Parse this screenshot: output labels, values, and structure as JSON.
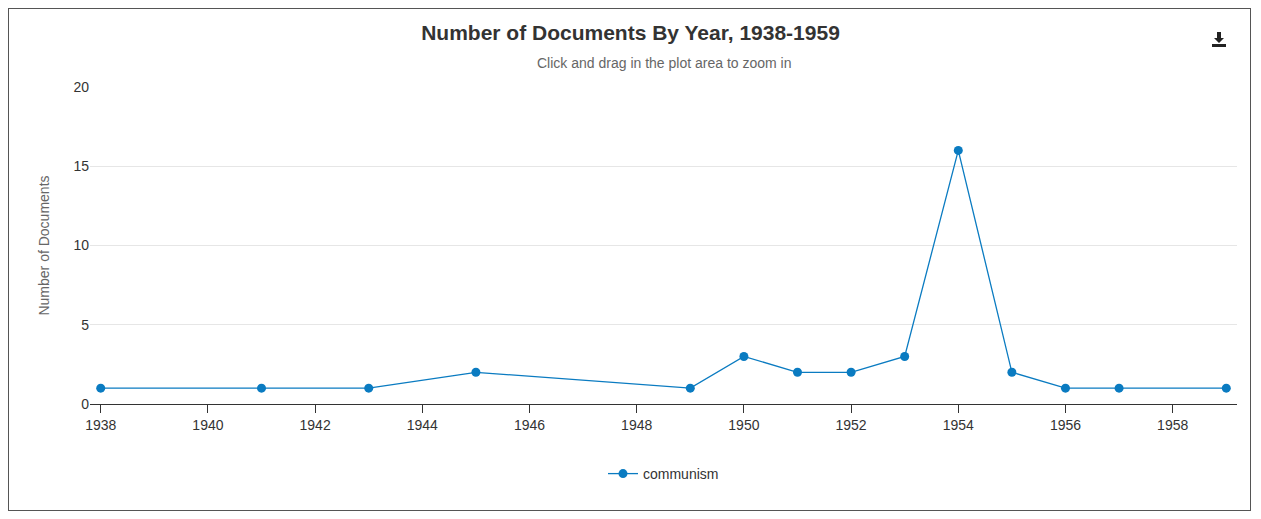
{
  "chart_data": {
    "type": "line",
    "title": "Number of Documents By Year, 1938-1959",
    "subtitle": "Click and drag in the plot area to zoom in",
    "y_label": "Number of Documents",
    "x": [
      1938,
      1941,
      1943,
      1945,
      1949,
      1950,
      1951,
      1952,
      1953,
      1954,
      1955,
      1956,
      1957,
      1959
    ],
    "series": [
      {
        "name": "communism",
        "color": "#0a7bc1",
        "marker": "circle",
        "values": [
          1,
          1,
          1,
          2,
          1,
          3,
          2,
          2,
          3,
          16,
          2,
          1,
          1,
          1
        ]
      }
    ],
    "xlim": [
      1937.8,
      1959.2
    ],
    "xticks": [
      1938,
      1940,
      1942,
      1944,
      1946,
      1948,
      1950,
      1952,
      1954,
      1956,
      1958
    ],
    "ylim": [
      0,
      20
    ],
    "yticks": [
      0,
      5,
      10,
      15,
      20
    ],
    "grid": true,
    "legend": "bottom"
  }
}
